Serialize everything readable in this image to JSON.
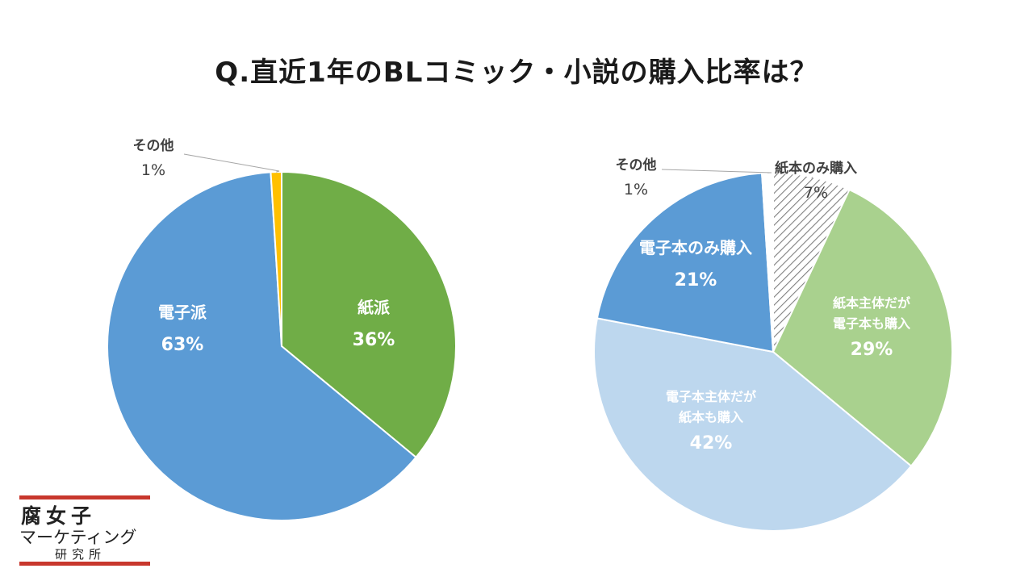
{
  "title": "Q.直近1年のBLコミック・小説の購入比率は？",
  "logo": {
    "line1": "腐女子",
    "line2": "マーケティング",
    "line3": "研究所"
  },
  "chart_data": [
    {
      "type": "pie",
      "title": "",
      "start_angle_deg": 0,
      "direction": "clockwise",
      "slices": [
        {
          "label": "紙派",
          "value": 36,
          "pct_label": "36%",
          "color": "#70ad47",
          "label_color": "#ffffff",
          "outside": false
        },
        {
          "label": "電子派",
          "value": 63,
          "pct_label": "63%",
          "color": "#5b9bd5",
          "label_color": "#ffffff",
          "outside": false
        },
        {
          "label": "その他",
          "value": 1,
          "pct_label": "1%",
          "color": "#ffc000",
          "label_color": "#404040",
          "outside": true
        }
      ]
    },
    {
      "type": "pie",
      "title": "",
      "start_angle_deg": 0,
      "direction": "clockwise",
      "slices": [
        {
          "label": "紙本のみ購入",
          "value": 7,
          "pct_label": "7%",
          "color": "hatch",
          "label_color": "#404040",
          "outside": true
        },
        {
          "label": "紙本主体だが\n電子本も購入",
          "value": 29,
          "pct_label": "29%",
          "color": "#a9d18e",
          "label_color": "#ffffff",
          "outside": false
        },
        {
          "label": "電子本主体だが\n紙本も購入",
          "value": 42,
          "pct_label": "42%",
          "color": "#bdd7ee",
          "label_color": "#ffffff",
          "outside": false
        },
        {
          "label": "電子本のみ購入",
          "value": 21,
          "pct_label": "21%",
          "color": "#5b9bd5",
          "label_color": "#ffffff",
          "outside": false
        },
        {
          "label": "その他",
          "value": 1,
          "pct_label": "1%",
          "color": "#ffffff",
          "label_color": "#404040",
          "outside": true
        }
      ]
    }
  ]
}
